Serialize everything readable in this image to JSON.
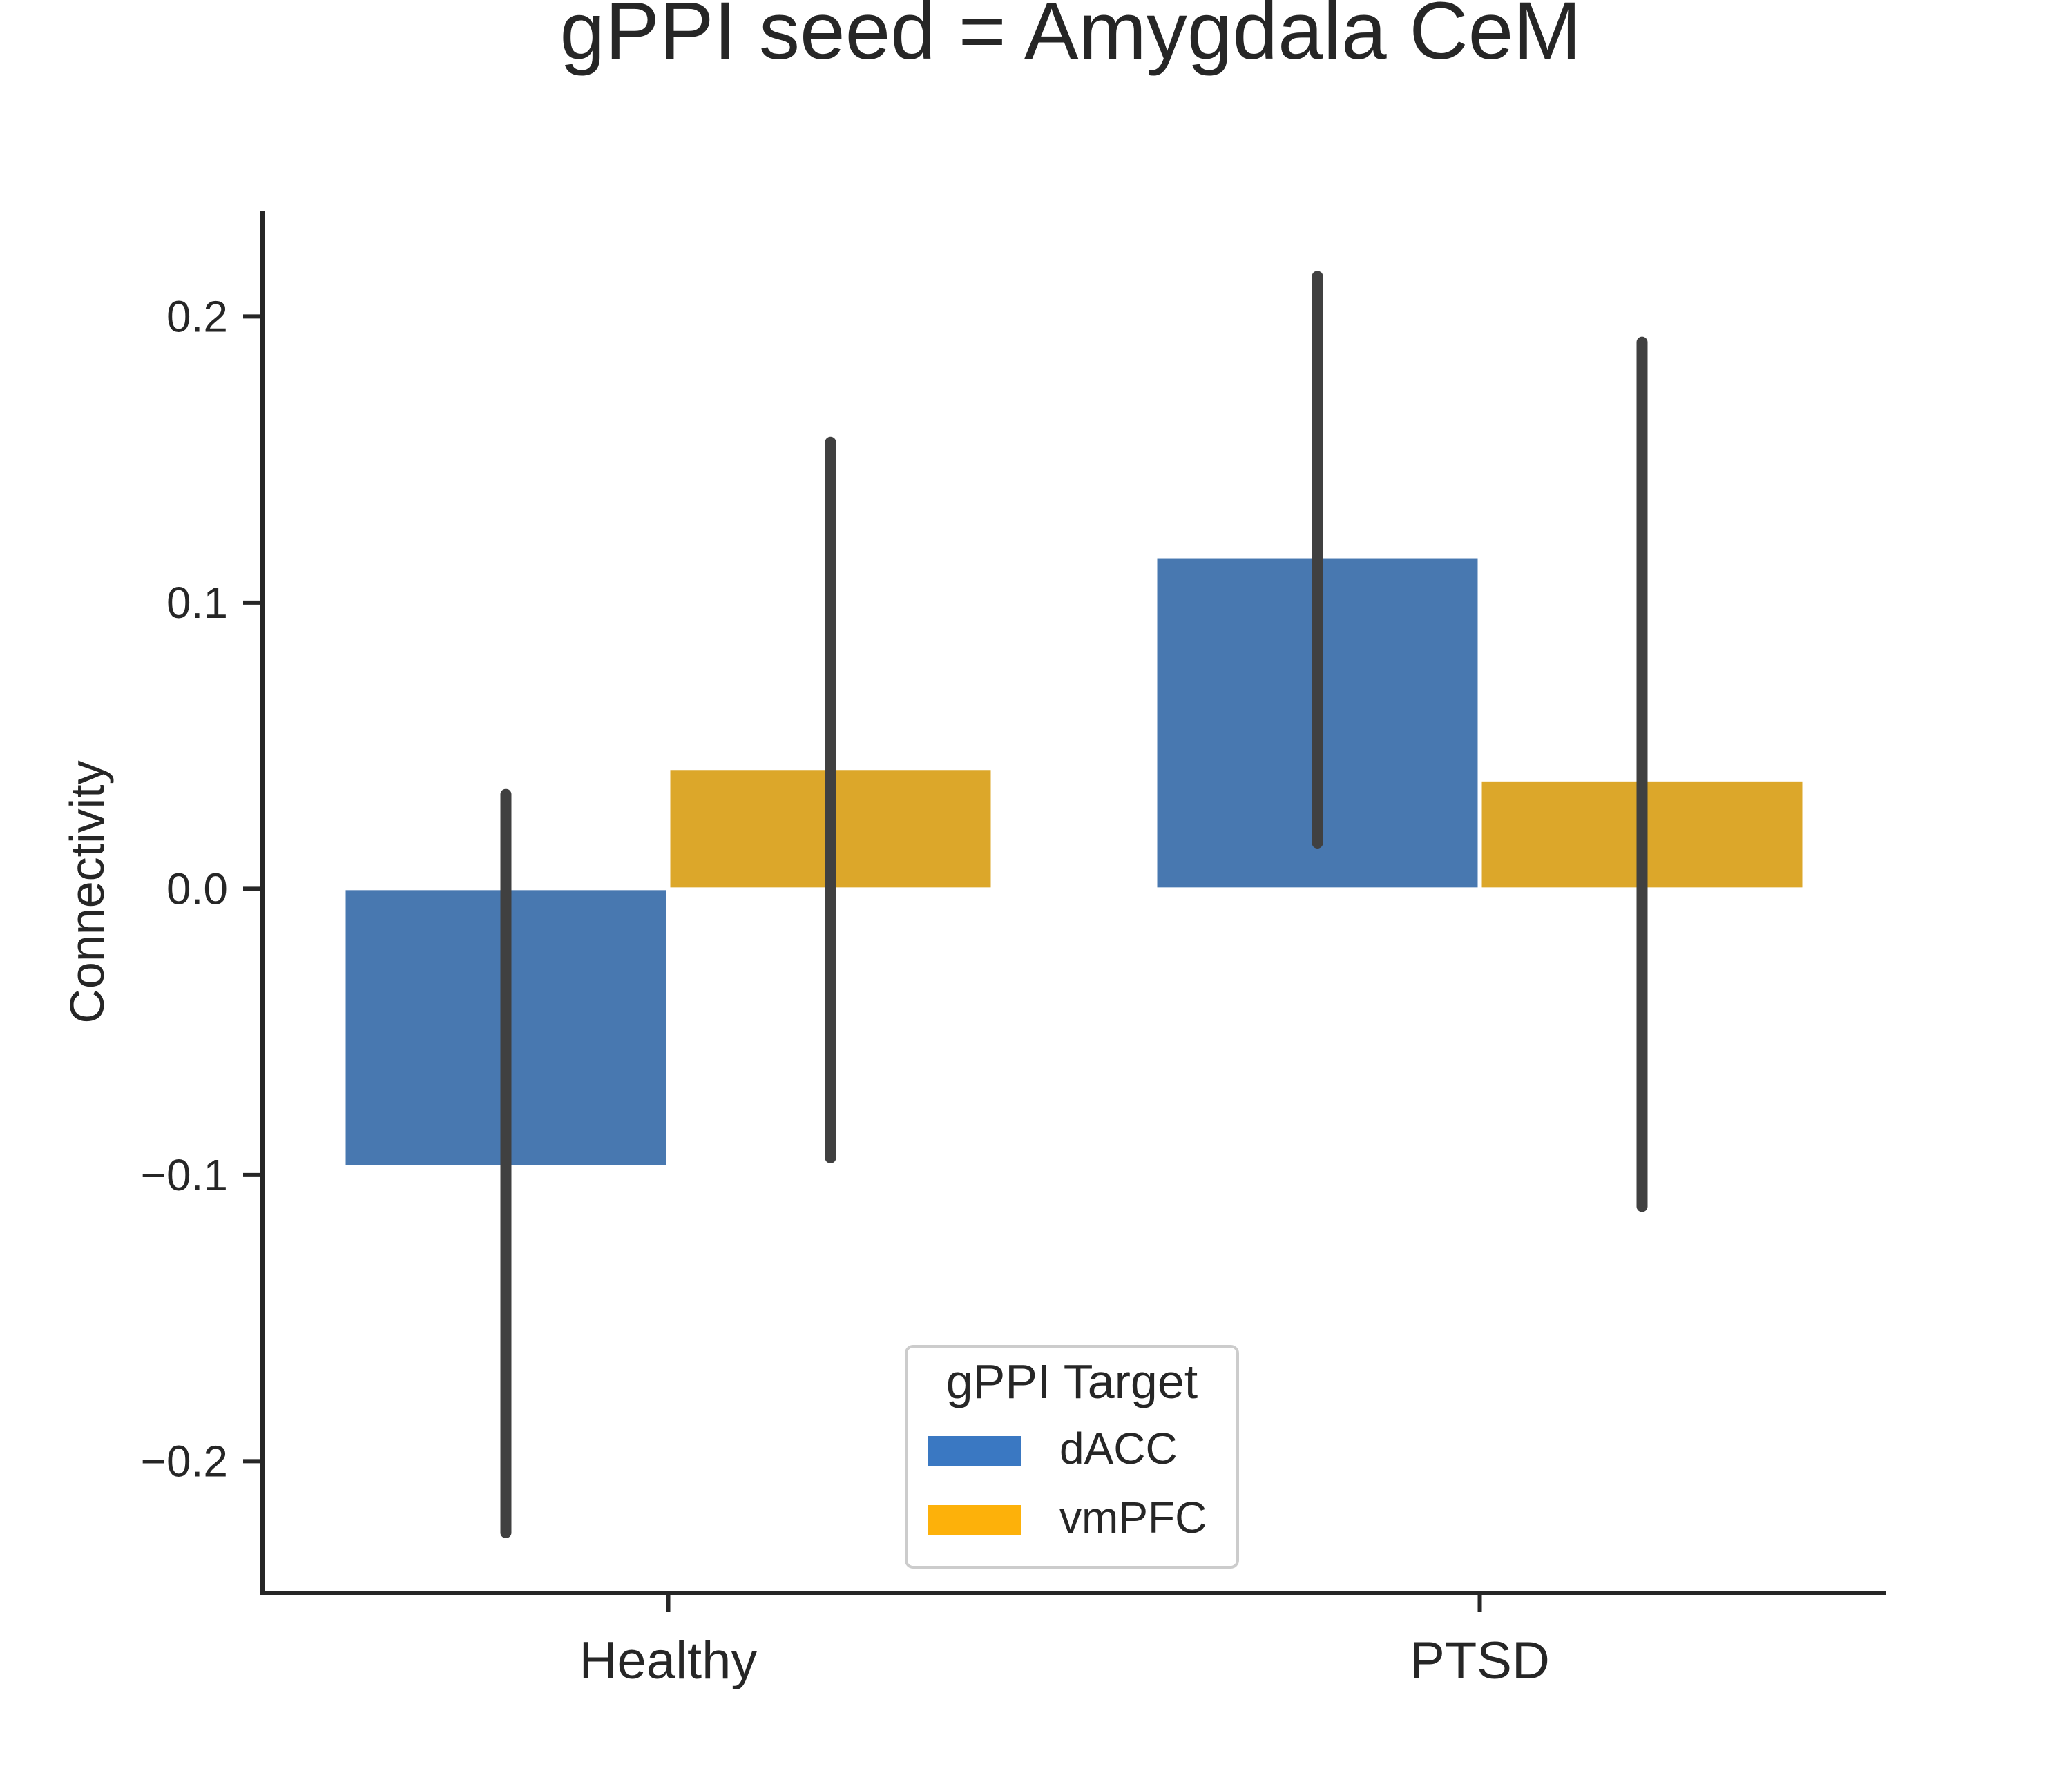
{
  "chart_data": {
    "type": "bar",
    "title": "gPPI seed = Amygdala CeM",
    "xlabel": "",
    "ylabel": "Connectivity",
    "categories": [
      "Healthy",
      "PTSD"
    ],
    "series": [
      {
        "name": "dACC",
        "color": "#4878b0",
        "legend_color": "#3a78c2",
        "values": [
          -0.097,
          0.116
        ],
        "ci_low": [
          -0.225,
          0.016
        ],
        "ci_high": [
          0.033,
          0.214
        ]
      },
      {
        "name": "vmPFC",
        "color": "#dca72a",
        "legend_color": "#fdb10a",
        "values": [
          0.042,
          0.038
        ],
        "ci_low": [
          -0.094,
          -0.111
        ],
        "ci_high": [
          0.156,
          0.191
        ]
      }
    ],
    "ylim": [
      -0.246,
      0.237
    ],
    "yticks": [
      -0.2,
      -0.1,
      0.0,
      0.1,
      0.2
    ],
    "ytick_labels": [
      "−0.2",
      "−0.1",
      "0.0",
      "0.1",
      "0.2"
    ],
    "legend": {
      "title": "gPPI Target",
      "placement": "lower-center"
    },
    "grid": false,
    "error_bar_color": "#404040",
    "axis_color": "#262626"
  }
}
